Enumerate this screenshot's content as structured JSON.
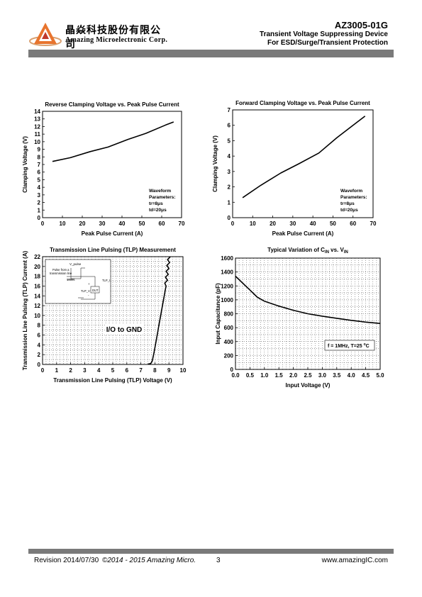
{
  "header": {
    "company_cn": "晶焱科技股份有限公司",
    "company_en": "Amazing Microelectronic Corp.",
    "part_number": "AZ3005-01G",
    "subtitle1": "Transient Voltage Suppressing Device",
    "subtitle2": "For ESD/Surge/Transient Protection"
  },
  "footer": {
    "revision": "Revision 2014/07/30",
    "copyright": "©2014 - 2015 Amazing Micro.",
    "page": "3",
    "website": "www.amazingIC.com"
  },
  "chart_data": [
    {
      "id": "chart1",
      "type": "line",
      "title": "Reverse Clamping Voltage vs. Peak Pulse Current",
      "xlabel": "Peak Pulse Current (A)",
      "ylabel": "Clamping Voltage (V)",
      "xlim": [
        0,
        70
      ],
      "ylim": [
        0,
        14
      ],
      "xticks": [
        0,
        10,
        20,
        30,
        40,
        50,
        60,
        70
      ],
      "yticks": [
        0,
        1,
        2,
        3,
        4,
        5,
        6,
        7,
        8,
        9,
        10,
        11,
        12,
        13,
        14
      ],
      "grid": false,
      "annotation": [
        "Waveform",
        "Parameters:",
        "tr=8μs",
        "td=20μs"
      ],
      "series": [
        {
          "x": [
            5,
            14,
            24,
            33,
            43,
            52,
            62,
            66
          ],
          "y": [
            7.4,
            7.9,
            8.7,
            9.3,
            10.3,
            11.1,
            12.2,
            12.6
          ]
        }
      ]
    },
    {
      "id": "chart2",
      "type": "line",
      "title": "Forward Clamping Voltage vs. Peak Pulse Current",
      "xlabel": "Peak Pulse Current (A)",
      "ylabel": "Clamping Voltage (V)",
      "xlim": [
        0,
        70
      ],
      "ylim": [
        0,
        7
      ],
      "xticks": [
        0,
        10,
        20,
        30,
        40,
        50,
        60,
        70
      ],
      "yticks": [
        0,
        1,
        2,
        3,
        4,
        5,
        6,
        7
      ],
      "grid": false,
      "annotation": [
        "Waveform",
        "Parameters:",
        "tr=8μs",
        "td=20μs"
      ],
      "series": [
        {
          "x": [
            5,
            14,
            24,
            33,
            43,
            52,
            62,
            66
          ],
          "y": [
            1.3,
            2.1,
            2.9,
            3.5,
            4.2,
            5.2,
            6.2,
            6.6
          ]
        }
      ]
    },
    {
      "id": "chart3",
      "type": "line",
      "title": "Transmission Line Pulsing (TLP) Measurement",
      "xlabel": "Transmission Line Pulsing (TLP) Voltage (V)",
      "ylabel": "Transmission Line Pulsing (TLP) Current (A)",
      "xlim": [
        0,
        10
      ],
      "ylim": [
        0,
        22
      ],
      "xticks": [
        0,
        1,
        2,
        3,
        4,
        5,
        6,
        7,
        8,
        9,
        10
      ],
      "yticks": [
        0,
        2,
        4,
        6,
        8,
        10,
        12,
        14,
        16,
        18,
        20,
        22
      ],
      "grid": true,
      "annotation": [
        "I/O to GND"
      ],
      "inset_labels": [
        "V_pulse",
        "Pulse from a",
        "transmission line",
        "DUT",
        "TLP_I",
        "TLP_V",
        "+",
        "-",
        "100ns"
      ],
      "series": [
        {
          "x": [
            7.5,
            7.7,
            7.8,
            7.85,
            7.9,
            7.95,
            8.0,
            8.05,
            8.1,
            8.15,
            8.2,
            8.25,
            8.3,
            8.35,
            8.4,
            8.45,
            8.5,
            8.55,
            8.6,
            8.65,
            8.7,
            8.75,
            8.8,
            8.7,
            8.9,
            8.75,
            8.95,
            8.8,
            9.0,
            8.85,
            9.05,
            8.9,
            9.1
          ],
          "y": [
            0.05,
            0.2,
            0.6,
            1.2,
            1.9,
            2.6,
            3.4,
            4.2,
            5.0,
            5.8,
            6.6,
            7.4,
            8.2,
            9.0,
            9.8,
            10.6,
            11.4,
            12.2,
            13.0,
            13.8,
            14.6,
            15.4,
            16.0,
            16.6,
            17.2,
            17.8,
            18.4,
            19.0,
            19.6,
            20.2,
            20.8,
            21.4,
            22.0
          ]
        }
      ]
    },
    {
      "id": "chart4",
      "type": "line",
      "title_main": "Typical Variation of C",
      "title_sub1": "IN",
      "title_mid": " vs. V",
      "title_sub2": "IN",
      "xlabel": "Input Voltage (V)",
      "ylabel": "Input Capacitance (pF)",
      "xlim": [
        0,
        5
      ],
      "ylim": [
        0,
        1600
      ],
      "xticks": [
        "0.0",
        "0.5",
        "1.0",
        "1.5",
        "2.0",
        "2.5",
        "3.0",
        "3.5",
        "4.0",
        "4.5",
        "5.0"
      ],
      "yticks": [
        0,
        200,
        400,
        600,
        800,
        1000,
        1200,
        1400,
        1600
      ],
      "grid": true,
      "annotation": {
        "main": "f = 1MHz, T=25 ",
        "sup": "o",
        "unit": "C"
      },
      "series": [
        {
          "x": [
            0.0,
            0.25,
            0.5,
            0.75,
            1.0,
            1.5,
            2.0,
            2.5,
            3.0,
            3.5,
            4.0,
            4.5,
            5.0
          ],
          "y": [
            1340,
            1240,
            1140,
            1040,
            980,
            910,
            850,
            800,
            765,
            735,
            705,
            680,
            660
          ]
        }
      ]
    }
  ]
}
